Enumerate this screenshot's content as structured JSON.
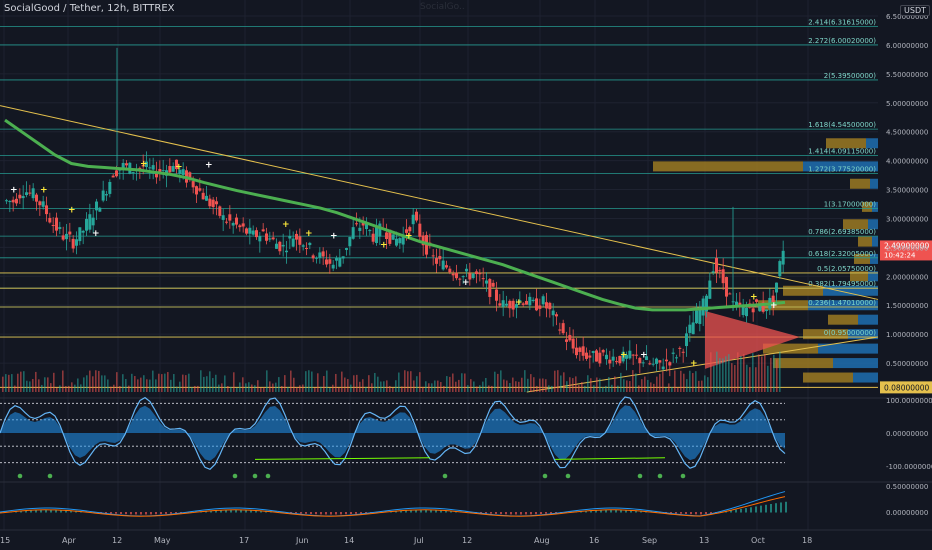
{
  "header": {
    "title": "SocialGood / Tether, 12h, BITTREX",
    "watermark": "SocialGo..",
    "currency": "USDT"
  },
  "colors": {
    "bg": "#131722",
    "grid": "#1e2230",
    "fib_line": "#26a69a",
    "fib_text": "#7fd6c9",
    "yellow": "#e4c04d",
    "ma": "#4caf50",
    "up": "#26a69a",
    "down": "#ef5350",
    "vp_blue": "#1e6fb0",
    "vp_gold": "#9c7a22",
    "price_tag": "#ef5350",
    "osc_blue": "#2196f3"
  },
  "chart_data": [
    {
      "type": "candlestick",
      "title": "SocialGood / Tether, 12h, BITTREX",
      "ylim": [
        0,
        6.5
      ],
      "y_ticks": [
        "6.50000000",
        "6.00000000",
        "5.50000000",
        "5.00000000",
        "4.50000000",
        "4.00000000",
        "3.50000000",
        "3.00000000",
        "2.50000000",
        "2.00000000",
        "1.50000000",
        "1.00000000",
        "0.50000000"
      ],
      "x_ticks": [
        "15",
        "Apr",
        "12",
        "May",
        "17",
        "Jun",
        "14",
        "Jul",
        "12",
        "Aug",
        "16",
        "Sep",
        "13",
        "Oct",
        "18"
      ],
      "fib_levels": [
        {
          "label": "2.414(6.31615000)",
          "value": 6.316
        },
        {
          "label": "2.272(6.00020000)",
          "value": 6.0
        },
        {
          "label": "2(5.39500000)",
          "value": 5.395
        },
        {
          "label": "1.618(4.54500000)",
          "value": 4.545
        },
        {
          "label": "1.414(4.09115000)",
          "value": 4.091
        },
        {
          "label": "1.272(3.77520000)",
          "value": 3.775
        },
        {
          "label": "1(3.17000000)",
          "value": 3.17
        },
        {
          "label": "0.786(2.69385000)",
          "value": 2.694
        },
        {
          "label": "0.618(2.32005000)",
          "value": 2.32
        },
        {
          "label": "0.5(2.05750000)",
          "value": 2.058
        },
        {
          "label": "0.382(1.79495000)",
          "value": 1.795
        },
        {
          "label": "0.236(1.47010000)",
          "value": 1.47
        },
        {
          "label": "0(0.95000000)",
          "value": 0.95
        }
      ],
      "support_level": {
        "label": "0.08000000",
        "value": 0.08
      },
      "last_price": {
        "label": "2.49900000",
        "countdown": "10:42:24",
        "value": 2.499
      },
      "price_series": [
        3.3,
        3.5,
        3.4,
        3.2,
        2.9,
        2.7,
        2.6,
        2.8,
        3.1,
        3.4,
        3.8,
        3.9,
        3.85,
        3.9,
        3.8,
        3.85,
        3.9,
        3.75,
        3.6,
        3.4,
        3.2,
        3.0,
        2.9,
        2.8,
        2.7,
        2.75,
        2.6,
        2.5,
        2.7,
        2.6,
        2.4,
        2.3,
        2.2,
        2.4,
        2.8,
        2.9,
        2.7,
        2.85,
        2.6,
        2.7,
        3.0,
        2.6,
        2.3,
        2.2,
        2.1,
        2.0,
        2.05,
        1.9,
        1.7,
        1.5,
        1.55,
        1.6,
        1.5,
        1.55,
        1.3,
        1.0,
        0.75,
        0.65,
        0.6,
        0.62,
        0.6,
        0.58,
        0.6,
        0.55,
        0.45,
        0.5,
        0.6,
        0.8,
        1.2,
        1.5,
        2.2,
        1.9,
        1.5,
        1.4,
        1.5,
        1.45,
        1.6,
        2.5
      ],
      "ma_series": [
        4.7,
        4.5,
        4.3,
        4.1,
        3.95,
        3.9,
        3.88,
        3.86,
        3.84,
        3.8,
        3.76,
        3.7,
        3.62,
        3.55,
        3.48,
        3.42,
        3.36,
        3.3,
        3.24,
        3.18,
        3.1,
        3.0,
        2.9,
        2.8,
        2.7,
        2.6,
        2.52,
        2.44,
        2.36,
        2.28,
        2.2,
        2.1,
        2.0,
        1.9,
        1.8,
        1.7,
        1.6,
        1.52,
        1.45,
        1.42,
        1.42,
        1.42,
        1.44,
        1.46,
        1.48,
        1.5,
        1.52,
        1.55
      ],
      "resistance_trendline": [
        [
          0,
          4.95
        ],
        [
          1.0,
          1.6
        ]
      ],
      "support_trendline": [
        [
          0.6,
          0.0
        ],
        [
          1.0,
          0.95
        ]
      ]
    },
    {
      "type": "oscillator",
      "ylim": [
        -100,
        100
      ],
      "y_ticks": [
        "100.00000000",
        "0.00000000",
        "-100.00000000"
      ]
    },
    {
      "type": "macd",
      "y_ticks": [
        "0.50000000",
        "0.00000000"
      ]
    }
  ]
}
